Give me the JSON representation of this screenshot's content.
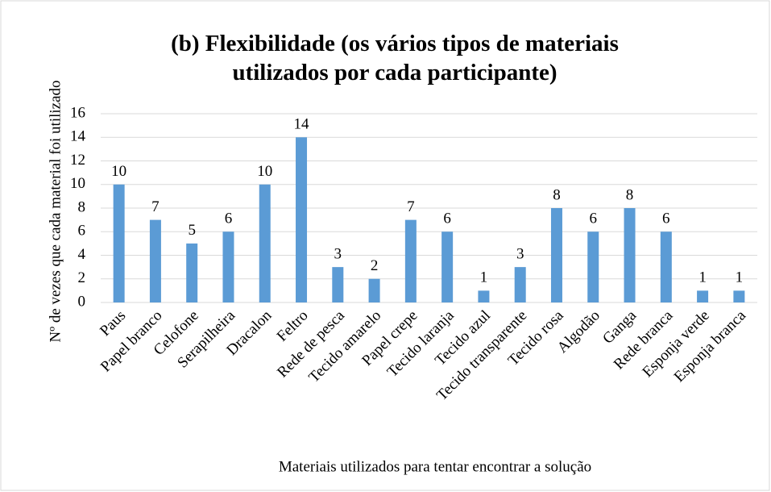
{
  "chart_data": {
    "type": "bar",
    "title": "(b) Flexibilidade (os vários tipos de materiais utilizados por cada participante)",
    "xlabel": "Materiais utilizados para tentar encontrar a solução",
    "ylabel": "Nº de vezes que cada material foi utilizado",
    "categories": [
      "Paus",
      "Papel branco",
      "Celofone",
      "Serapilheira",
      "Dracalon",
      "Feltro",
      "Rede de pesca",
      "Tecido amarelo",
      "Papel crepe",
      "Tecido laranja",
      "Tecido azul",
      "Tecido transparente",
      "Tecido rosa",
      "Algodão",
      "Ganga",
      "Rede branca",
      "Esponja verde",
      "Esponja branca"
    ],
    "values": [
      10,
      7,
      5,
      6,
      10,
      14,
      3,
      2,
      7,
      6,
      1,
      3,
      8,
      6,
      8,
      6,
      1,
      1
    ],
    "color": "#5b9bd5",
    "ylim": [
      0,
      16
    ],
    "yticks": [
      0,
      2,
      4,
      6,
      8,
      10,
      12,
      14,
      16
    ],
    "grid": true
  }
}
